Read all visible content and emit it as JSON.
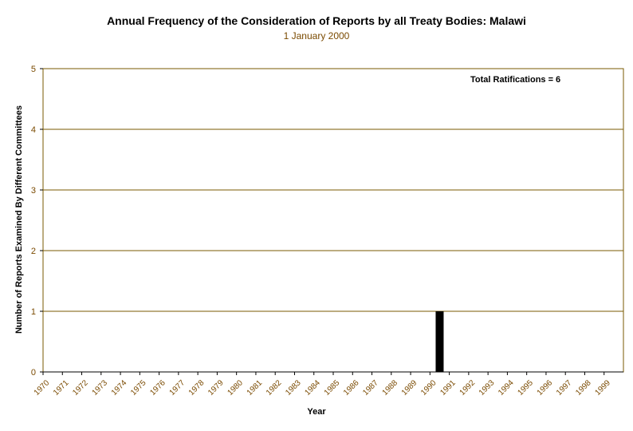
{
  "chart_data": {
    "type": "bar",
    "title": "Annual Frequency of the Consideration of Reports by all Treaty Bodies: Malawi",
    "subtitle": "1 January 2000",
    "xlabel": "Year",
    "ylabel": "Number of Reports Examined By Different Committees",
    "annotation": "Total Ratifications = 6",
    "categories": [
      "1970",
      "1971",
      "1972",
      "1973",
      "1974",
      "1975",
      "1976",
      "1977",
      "1978",
      "1979",
      "1980",
      "1981",
      "1982",
      "1983",
      "1984",
      "1985",
      "1986",
      "1987",
      "1988",
      "1989",
      "1990",
      "1991",
      "1992",
      "1993",
      "1994",
      "1995",
      "1996",
      "1997",
      "1998",
      "1999"
    ],
    "values": [
      0,
      0,
      0,
      0,
      0,
      0,
      0,
      0,
      0,
      0,
      0,
      0,
      0,
      0,
      0,
      0,
      0,
      0,
      0,
      0,
      1,
      0,
      0,
      0,
      0,
      0,
      0,
      0,
      0,
      0
    ],
    "ylim": [
      0,
      5
    ],
    "yticks": [
      "0",
      "1",
      "2",
      "3",
      "4",
      "5"
    ],
    "grid": true,
    "colors": {
      "bar": "#000000",
      "gridline": "#7a5a00",
      "tick_text": "#7a4a00"
    }
  }
}
